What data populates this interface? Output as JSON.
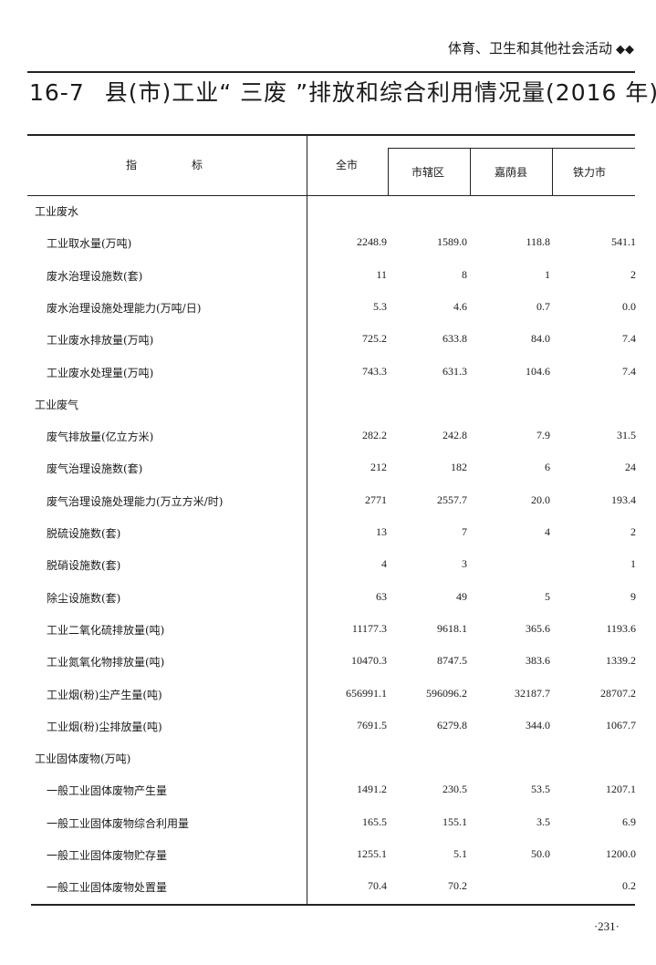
{
  "running_header": {
    "section": "体育、卫生和其他社会活动",
    "ornament": "◆◆"
  },
  "title": {
    "number": "16-7",
    "text": "县(市)工业“ 三废 ”排放和综合利用情况量(2016 年)"
  },
  "table": {
    "header": {
      "indicator": "指　　　　　标",
      "total": "全市",
      "subcolumns": [
        "市辖区",
        "嘉荫县",
        "铁力市"
      ]
    },
    "rows": [
      {
        "label": "工业废水",
        "section": true,
        "values": [
          "",
          "",
          "",
          ""
        ]
      },
      {
        "label": "工业取水量(万吨)",
        "values": [
          "2248.9",
          "1589.0",
          "118.8",
          "541.1"
        ]
      },
      {
        "label": "废水治理设施数(套)",
        "values": [
          "11",
          "8",
          "1",
          "2"
        ]
      },
      {
        "label": "废水治理设施处理能力(万吨/日)",
        "values": [
          "5.3",
          "4.6",
          "0.7",
          "0.0"
        ]
      },
      {
        "label": "工业废水排放量(万吨)",
        "values": [
          "725.2",
          "633.8",
          "84.0",
          "7.4"
        ]
      },
      {
        "label": "工业废水处理量(万吨)",
        "values": [
          "743.3",
          "631.3",
          "104.6",
          "7.4"
        ]
      },
      {
        "label": "工业废气",
        "section": true,
        "values": [
          "",
          "",
          "",
          ""
        ]
      },
      {
        "label": "废气排放量(亿立方米)",
        "values": [
          "282.2",
          "242.8",
          "7.9",
          "31.5"
        ]
      },
      {
        "label": "废气治理设施数(套)",
        "values": [
          "212",
          "182",
          "6",
          "24"
        ]
      },
      {
        "label": "废气治理设施处理能力(万立方米/时)",
        "values": [
          "2771",
          "2557.7",
          "20.0",
          "193.4"
        ]
      },
      {
        "label": "脱硫设施数(套)",
        "values": [
          "13",
          "7",
          "4",
          "2"
        ]
      },
      {
        "label": "脱硝设施数(套)",
        "values": [
          "4",
          "3",
          "",
          "1"
        ]
      },
      {
        "label": "除尘设施数(套)",
        "values": [
          "63",
          "49",
          "5",
          "9"
        ]
      },
      {
        "label": "工业二氧化硫排放量(吨)",
        "values": [
          "11177.3",
          "9618.1",
          "365.6",
          "1193.6"
        ]
      },
      {
        "label": "工业氮氧化物排放量(吨)",
        "values": [
          "10470.3",
          "8747.5",
          "383.6",
          "1339.2"
        ]
      },
      {
        "label": "工业烟(粉)尘产生量(吨)",
        "values": [
          "656991.1",
          "596096.2",
          "32187.7",
          "28707.2"
        ]
      },
      {
        "label": "工业烟(粉)尘排放量(吨)",
        "values": [
          "7691.5",
          "6279.8",
          "344.0",
          "1067.7"
        ]
      },
      {
        "label": "工业固体废物(万吨)",
        "section": true,
        "values": [
          "",
          "",
          "",
          ""
        ]
      },
      {
        "label": "一般工业固体废物产生量",
        "values": [
          "1491.2",
          "230.5",
          "53.5",
          "1207.1"
        ]
      },
      {
        "label": "一般工业固体废物综合利用量",
        "values": [
          "165.5",
          "155.1",
          "3.5",
          "6.9"
        ]
      },
      {
        "label": "一般工业固体废物贮存量",
        "values": [
          "1255.1",
          "5.1",
          "50.0",
          "1200.0"
        ]
      },
      {
        "label": "一般工业固体废物处置量",
        "values": [
          "70.4",
          "70.2",
          "",
          "0.2"
        ]
      }
    ]
  },
  "page_number": "·231·"
}
